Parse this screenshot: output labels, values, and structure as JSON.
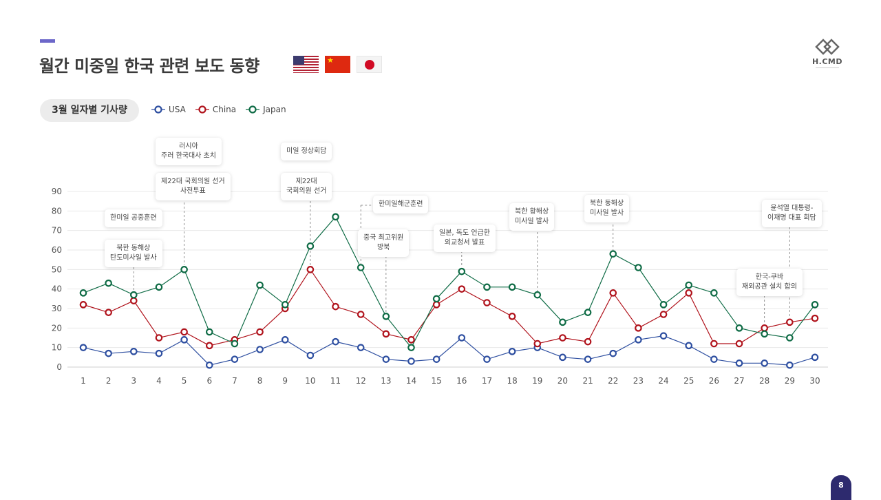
{
  "header": {
    "title": "월간 미중일 한국 관련 보도 동향"
  },
  "flags": [
    "us-flag-icon",
    "china-flag-icon",
    "japan-flag-icon"
  ],
  "logo": {
    "text": "H.CMD"
  },
  "chart_pill": "3월 일자별 기사량",
  "page_number": "8",
  "chart_data": {
    "type": "line",
    "title": "",
    "x": [
      1,
      2,
      3,
      4,
      5,
      6,
      7,
      8,
      9,
      10,
      11,
      12,
      13,
      14,
      15,
      16,
      17,
      18,
      19,
      20,
      21,
      22,
      23,
      24,
      25,
      26,
      27,
      28,
      29,
      30
    ],
    "ylim": [
      0,
      90
    ],
    "yticks": [
      0,
      10,
      20,
      30,
      40,
      50,
      60,
      70,
      80,
      90
    ],
    "grid": true,
    "legend_position": "top-left",
    "series": [
      {
        "name": "USA",
        "color": "#2d4ea0",
        "values": [
          10,
          7,
          8,
          7,
          14,
          1,
          4,
          9,
          14,
          6,
          13,
          10,
          4,
          3,
          4,
          15,
          4,
          8,
          10,
          5,
          4,
          7,
          14,
          16,
          11,
          4,
          2,
          2,
          1,
          5
        ]
      },
      {
        "name": "China",
        "color": "#b0121b",
        "values": [
          32,
          28,
          34,
          15,
          18,
          11,
          14,
          18,
          30,
          50,
          31,
          27,
          17,
          14,
          32,
          40,
          33,
          26,
          12,
          15,
          13,
          38,
          20,
          27,
          38,
          12,
          12,
          20,
          23,
          25
        ]
      },
      {
        "name": "Japan",
        "color": "#0e6b45",
        "values": [
          38,
          43,
          37,
          41,
          50,
          18,
          12,
          42,
          32,
          62,
          77,
          51,
          26,
          10,
          35,
          49,
          41,
          41,
          37,
          23,
          28,
          58,
          51,
          32,
          42,
          38,
          20,
          17,
          15,
          32
        ]
      }
    ]
  },
  "annotations": [
    {
      "text": "한미일 공중훈련",
      "day": 3
    },
    {
      "text": "북한 동해상\n탄도미사일 발사",
      "day": 3
    },
    {
      "text": "러시아\n주러 한국대사 초치",
      "day": 5
    },
    {
      "text": "제22대 국회의원 선거\n사전투표",
      "day": 5
    },
    {
      "text": "미일 정상회담",
      "day": 10
    },
    {
      "text": "제22대\n국회의원 선거",
      "day": 10
    },
    {
      "text": "한미일해군훈련",
      "day": 12
    },
    {
      "text": "중국 최고위원\n방북",
      "day": 13
    },
    {
      "text": "일본, 독도 언급한\n외교청서 발표",
      "day": 16
    },
    {
      "text": "북한 황해상\n미사일 발사",
      "day": 19
    },
    {
      "text": "북한 동해상\n미사일 발사",
      "day": 22
    },
    {
      "text": "한국-쿠바\n재외공관 설치 합의",
      "day": 28
    },
    {
      "text": "윤석열 대통령-\n이재명 대표 회담",
      "day": 29
    }
  ]
}
